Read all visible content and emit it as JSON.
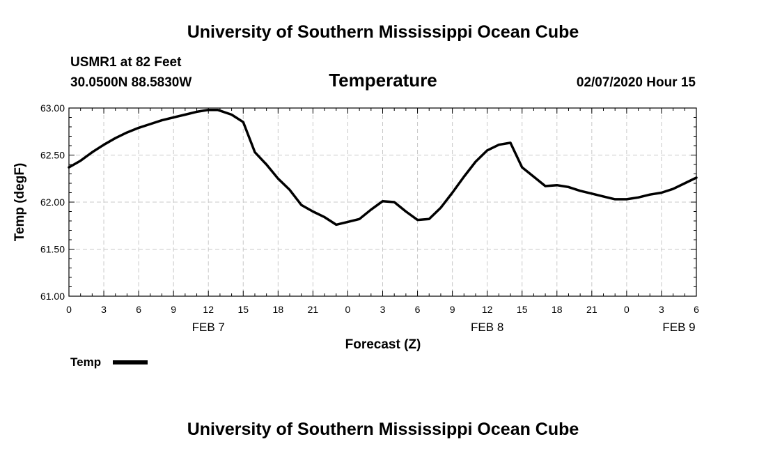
{
  "chart_data": {
    "type": "line",
    "title": "University of Southern Mississippi Ocean Cube",
    "footer_title": "University of Southern Mississippi Ocean Cube",
    "station": "USMR1 at 82 Feet",
    "location": "30.0500N 88.5830W",
    "variable": "Temperature",
    "run_time": "02/07/2020 Hour 15",
    "xlabel": "Forecast (Z)",
    "ylabel": "Temp (degF)",
    "xlim": [
      0,
      54
    ],
    "ylim": [
      61.0,
      63.0
    ],
    "grid": true,
    "y_ticks": [
      "61.00",
      "61.50",
      "62.00",
      "62.50",
      "63.00"
    ],
    "x_tick_labels": [
      "0",
      "3",
      "6",
      "9",
      "12",
      "15",
      "18",
      "21",
      "0",
      "3",
      "6",
      "9",
      "12",
      "15",
      "18",
      "21",
      "0",
      "3",
      "6"
    ],
    "date_labels": [
      {
        "label": "FEB 7",
        "x": 12
      },
      {
        "label": "FEB 8",
        "x": 36
      },
      {
        "label": "FEB 9",
        "x": 52.5
      }
    ],
    "legend": {
      "label": "Temp"
    },
    "series": [
      {
        "name": "Temp",
        "x": [
          0,
          1,
          2,
          3,
          4,
          5,
          6,
          7,
          8,
          9,
          10,
          11,
          12,
          12.8,
          14,
          15,
          16,
          17,
          18,
          19,
          20,
          21,
          22,
          23,
          24,
          25,
          26,
          27,
          28,
          29,
          30,
          31,
          32,
          33,
          34,
          35,
          36,
          37,
          38,
          39,
          40,
          41,
          42,
          43,
          44,
          45,
          46,
          47,
          48,
          49,
          50,
          51,
          52,
          53,
          54
        ],
        "y": [
          62.37,
          62.44,
          62.53,
          62.61,
          62.68,
          62.74,
          62.79,
          62.83,
          62.87,
          62.9,
          62.93,
          62.96,
          62.98,
          62.98,
          62.93,
          62.85,
          62.53,
          62.4,
          62.25,
          62.13,
          61.97,
          61.9,
          61.84,
          61.76,
          61.79,
          61.82,
          61.92,
          62.01,
          62.0,
          61.9,
          61.81,
          61.82,
          61.94,
          62.1,
          62.27,
          62.43,
          62.55,
          62.61,
          62.63,
          62.37,
          62.27,
          62.17,
          62.18,
          62.16,
          62.12,
          62.09,
          62.06,
          62.03,
          62.03,
          62.05,
          62.08,
          62.1,
          62.14,
          62.2,
          62.26
        ]
      }
    ]
  }
}
